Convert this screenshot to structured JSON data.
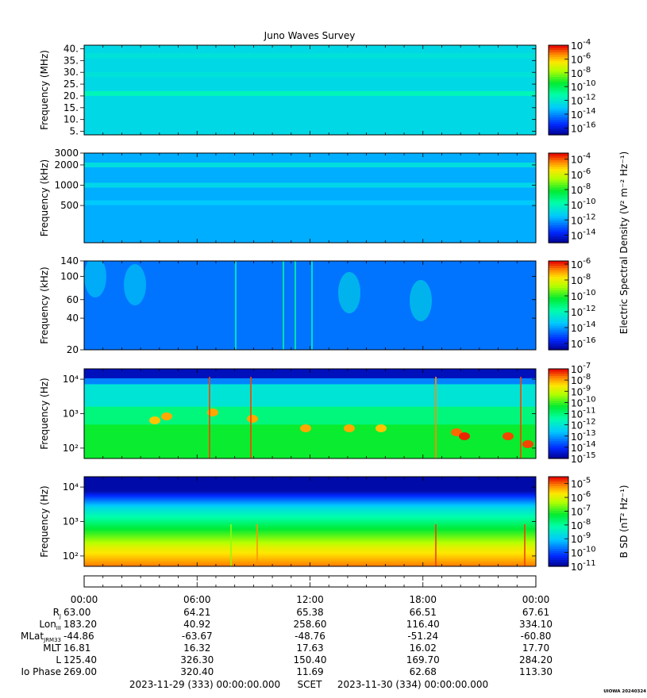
{
  "title": "Juno Waves Survey",
  "chart_data": [
    {
      "type": "heatmap",
      "panel": "Panel 1 (MHz)",
      "ylabel": "Frequency (MHz)",
      "yticks": [
        "40.",
        "35.",
        "30.",
        "25.",
        "20.",
        "15.",
        "10.",
        "5."
      ],
      "yvalues": [
        40,
        35,
        30,
        25,
        20,
        15,
        10,
        5
      ],
      "ylim": [
        3.5,
        41.5
      ],
      "yscale": "linear",
      "cbar_ticks": [
        "-4",
        "-6",
        "-8",
        "-10",
        "-12",
        "-14",
        "-16"
      ],
      "cbar_range": [
        -17,
        -4
      ],
      "background_level": -12.5,
      "bands": [
        {
          "freq": 21,
          "level": -11.5
        },
        {
          "freq": 29,
          "level": -12.2
        },
        {
          "freq": 37,
          "level": -12.2
        }
      ]
    },
    {
      "type": "heatmap",
      "panel": "Panel 2 (kHz high)",
      "ylabel": "Frequency (kHz)",
      "yticks": [
        "3000",
        "2000",
        "1000",
        "500"
      ],
      "yvalues": [
        3000,
        2000,
        1000,
        500
      ],
      "ylim": [
        140,
        3000
      ],
      "yscale": "log",
      "cbar_ticks": [
        "-4",
        "-6",
        "-8",
        "-10",
        "-12",
        "-14"
      ],
      "cbar_range": [
        -15,
        -3.2
      ],
      "background_level": -11.8,
      "bands": [
        {
          "freq": 2000,
          "level": -10.8
        },
        {
          "freq": 1000,
          "level": -11.0
        },
        {
          "freq": 550,
          "level": -11.4
        }
      ]
    },
    {
      "type": "heatmap",
      "panel": "Panel 3 (kHz low)",
      "ylabel": "Frequency (kHz)",
      "yticks": [
        "140",
        "100",
        "60",
        "40",
        "20"
      ],
      "yvalues": [
        140,
        100,
        60,
        40,
        20
      ],
      "ylim": [
        20,
        140
      ],
      "yscale": "log",
      "cbar_ticks": [
        "-6",
        "-8",
        "-10",
        "-12",
        "-14",
        "-16"
      ],
      "cbar_range": [
        -16.8,
        -5.6
      ],
      "background_level": -14.5,
      "zlabel": "Electric Spectral Density (V² m⁻² Hz⁻¹)"
    },
    {
      "type": "heatmap",
      "panel": "Panel 4 (Hz E)",
      "ylabel": "Frequency (Hz)",
      "yticks": [
        "10⁴",
        "10³",
        "10²"
      ],
      "yvalues": [
        10000,
        1000,
        100
      ],
      "ylim": [
        50,
        20000
      ],
      "yscale": "log",
      "cbar_ticks": [
        "-7",
        "-8",
        "-9",
        "-10",
        "-11",
        "-12",
        "-13",
        "-14",
        "-15"
      ],
      "cbar_range": [
        -15,
        -7
      ],
      "background_level": -13.5
    },
    {
      "type": "heatmap",
      "panel": "Panel 5 (Hz B)",
      "ylabel": "Frequency (Hz)",
      "yticks": [
        "10⁴",
        "10³",
        "10²"
      ],
      "yvalues": [
        10000,
        1000,
        100
      ],
      "ylim": [
        50,
        20000
      ],
      "yscale": "log",
      "cbar_ticks": [
        "-5",
        "-6",
        "-7",
        "-8",
        "-9",
        "-10",
        "-11"
      ],
      "cbar_range": [
        -11,
        -4.5
      ],
      "zlabel": "B SD (nT² Hz⁻¹)"
    }
  ],
  "ephemeris": {
    "time_ticks": [
      "00:00",
      "06:00",
      "12:00",
      "18:00",
      "00:00"
    ],
    "rows": [
      {
        "label": "R",
        "sub": "J",
        "values": [
          "63.00",
          "64.21",
          "65.38",
          "66.51",
          "67.61"
        ]
      },
      {
        "label": "Lon",
        "sub": "III",
        "values": [
          "183.20",
          "40.92",
          "258.60",
          "116.40",
          "334.10"
        ]
      },
      {
        "label": "MLat",
        "sub": "JRM33",
        "values": [
          "-44.86",
          "-63.67",
          "-48.76",
          "-51.24",
          "-60.80"
        ]
      },
      {
        "label": "MLT",
        "sub": "",
        "values": [
          "16.81",
          "16.32",
          "17.63",
          "16.02",
          "17.70"
        ]
      },
      {
        "label": "L",
        "sub": "",
        "values": [
          "125.40",
          "326.30",
          "150.40",
          "169.70",
          "284.20"
        ]
      },
      {
        "label": "Io Phase",
        "sub": "",
        "values": [
          "269.00",
          "320.40",
          "11.69",
          "62.68",
          "113.30"
        ]
      }
    ]
  },
  "footer": {
    "start": "2023-11-29 (333) 00:00:00.000",
    "center": "SCET",
    "end": "2023-11-30 (334) 00:00:00.000",
    "stamp": "UIOWA 20240324"
  }
}
